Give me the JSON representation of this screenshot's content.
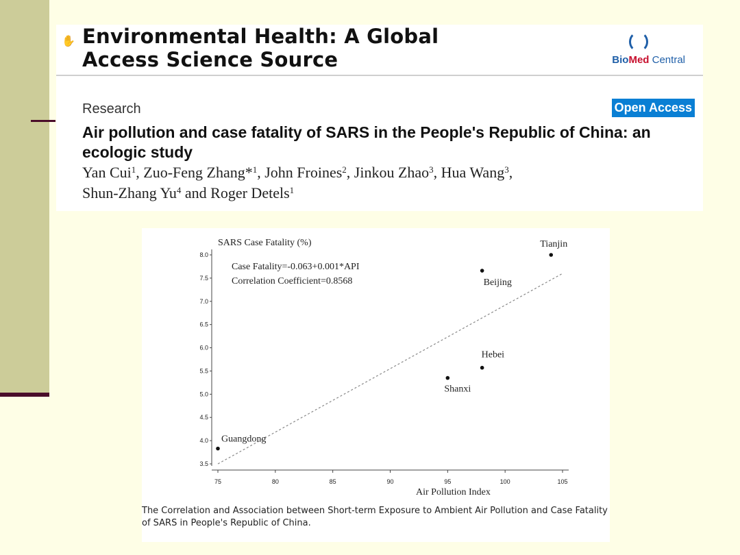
{
  "slide": {
    "band_color": "#cccc99",
    "rule_color": "#4a0d2a",
    "background": "#fefee6"
  },
  "header": {
    "hand_icon": "hand-pointer-icon",
    "journal_title_line1": "Environmental Health: A Global",
    "journal_title_line2": "Access Science Source",
    "logo_bio": "Bio",
    "logo_med": "Med",
    "logo_central": " Central",
    "section": "Research",
    "badge": "Open Access",
    "badge_color": "#0a7fd4",
    "article_title": "Air pollution and case fatality of SARS in the People's Republic of China: an ecologic study"
  },
  "authors": [
    {
      "name": "Yan Cui",
      "sup": "1",
      "sep": ", "
    },
    {
      "name": "Zuo-Feng Zhang*",
      "sup": "1",
      "sep": ", "
    },
    {
      "name": "John Froines",
      "sup": "2",
      "sep": ", "
    },
    {
      "name": "Jinkou Zhao",
      "sup": "3",
      "sep": ", "
    },
    {
      "name": "Hua Wang",
      "sup": "3",
      "sep": ","
    },
    {
      "name": "Shun-Zhang Yu",
      "sup": "4",
      "sep": " and "
    },
    {
      "name": "Roger Detels",
      "sup": "1",
      "sep": ""
    }
  ],
  "chart_data": {
    "type": "scatter",
    "ylabel": "SARS Case Fatality (%)",
    "xlabel": "Air Pollution Index",
    "xlim": [
      75,
      105
    ],
    "ylim": [
      3.5,
      8.0
    ],
    "xticks": [
      75,
      80,
      85,
      90,
      95,
      100,
      105
    ],
    "yticks": [
      "3.5",
      "4.0",
      "4.5",
      "5.0",
      "5.5",
      "6.0",
      "6.5",
      "7.0",
      "7.5",
      "8.0"
    ],
    "points": [
      {
        "label": "Guangdong",
        "x": 75,
        "y": 3.83
      },
      {
        "label": "Shanxi",
        "x": 95,
        "y": 5.35
      },
      {
        "label": "Hebei",
        "x": 98,
        "y": 5.57
      },
      {
        "label": "Beijing",
        "x": 98,
        "y": 7.66
      },
      {
        "label": "Tianjin",
        "x": 104,
        "y": 8.0
      }
    ],
    "trendline": {
      "x": [
        75,
        105
      ],
      "y": [
        3.5,
        7.6
      ],
      "style": "dotted"
    },
    "annotations": [
      "Case Fatality=-0.063+0.001*API",
      "Correlation Coefficient=0.8568"
    ],
    "grid": false
  },
  "caption": "The Correlation and Association between Short-term Exposure to Ambient Air Pollution and Case Fatality of SARS in People's Republic of China."
}
